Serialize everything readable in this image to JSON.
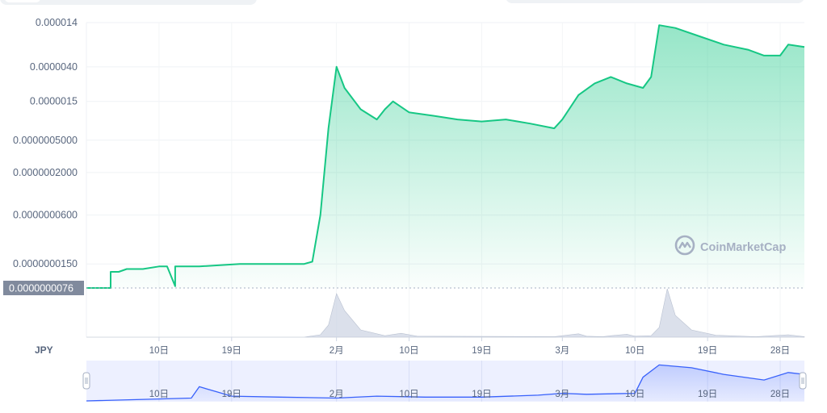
{
  "chart_data": {
    "type": "area",
    "currency": "JPY",
    "watermark": "CoinMarketCap",
    "y_scale": "log",
    "y_ticks": [
      "0.000014",
      "0.0000040",
      "0.0000015",
      "0.0000005000",
      "0.0000002000",
      "0.0000000600",
      "0.0000000150"
    ],
    "y_tick_values": [
      1.4e-05,
      4e-06,
      1.5e-06,
      5e-07,
      2e-07,
      6e-08,
      1.5e-08
    ],
    "current_price_label": "0.0000000076",
    "current_price_value": 7.6e-09,
    "x_ticks": [
      "10日",
      "19日",
      "2月",
      "10日",
      "19日",
      "3月",
      "10日",
      "19日",
      "28日"
    ],
    "x_tick_dates": [
      "2021-01-10",
      "2021-01-19",
      "2021-02-01",
      "2021-02-10",
      "2021-02-19",
      "2021-03-01",
      "2021-03-10",
      "2021-03-19",
      "2021-03-28"
    ],
    "x_range": [
      "2021-01-01",
      "2021-03-31"
    ],
    "line_color": "#16c784",
    "navigator_color": "#3861fb",
    "series": [
      {
        "x": [
          "2021-01-01",
          "2021-01-04",
          "2021-01-04",
          "2021-01-05",
          "2021-01-06",
          "2021-01-08",
          "2021-01-10",
          "2021-01-11",
          "2021-01-12",
          "2021-01-12",
          "2021-01-15",
          "2021-01-20",
          "2021-01-25",
          "2021-01-28",
          "2021-01-29",
          "2021-01-30",
          "2021-01-31",
          "2021-02-01",
          "2021-02-02",
          "2021-02-04",
          "2021-02-06",
          "2021-02-07",
          "2021-02-08",
          "2021-02-10",
          "2021-02-13",
          "2021-02-16",
          "2021-02-19",
          "2021-02-22",
          "2021-02-25",
          "2021-02-28",
          "2021-03-01",
          "2021-03-03",
          "2021-03-05",
          "2021-03-07",
          "2021-03-09",
          "2021-03-11",
          "2021-03-12",
          "2021-03-13",
          "2021-03-15",
          "2021-03-18",
          "2021-03-21",
          "2021-03-24",
          "2021-03-26",
          "2021-03-28",
          "2021-03-29",
          "2021-03-31"
        ],
        "values": [
          7.6e-09,
          7.6e-09,
          1.2e-08,
          1.2e-08,
          1.3e-08,
          1.3e-08,
          1.4e-08,
          1.4e-08,
          8e-09,
          1.4e-08,
          1.4e-08,
          1.5e-08,
          1.5e-08,
          1.5e-08,
          1.6e-08,
          6e-08,
          7e-07,
          4e-06,
          2.2e-06,
          1.2e-06,
          9e-07,
          1.2e-06,
          1.5e-06,
          1.1e-06,
          1e-06,
          9e-07,
          8.5e-07,
          9e-07,
          8e-07,
          7e-07,
          9e-07,
          1.8e-06,
          2.5e-06,
          3e-06,
          2.5e-06,
          2.2e-06,
          3e-06,
          1.3e-05,
          1.2e-05,
          9.5e-06,
          7.5e-06,
          6.5e-06,
          5.5e-06,
          5.5e-06,
          7.5e-06,
          7e-06
        ]
      }
    ],
    "volume": {
      "x": [
        "2021-01-01",
        "2021-01-28",
        "2021-01-30",
        "2021-01-31",
        "2021-02-01",
        "2021-02-02",
        "2021-02-04",
        "2021-02-07",
        "2021-02-09",
        "2021-02-11",
        "2021-02-28",
        "2021-03-01",
        "2021-03-03",
        "2021-03-04",
        "2021-03-06",
        "2021-03-07",
        "2021-03-09",
        "2021-03-10",
        "2021-03-12",
        "2021-03-13",
        "2021-03-14",
        "2021-03-15",
        "2021-03-17",
        "2021-03-20",
        "2021-03-25",
        "2021-03-27",
        "2021-03-29",
        "2021-03-31"
      ],
      "values": [
        0,
        0,
        5,
        25,
        90,
        55,
        15,
        3,
        8,
        2,
        1,
        3,
        7,
        2,
        1,
        3,
        6,
        2,
        3,
        20,
        100,
        45,
        15,
        4,
        1,
        3,
        5,
        1
      ]
    },
    "navigator": {
      "x_ticks": [
        "10日",
        "19日",
        "2月",
        "10日",
        "19日",
        "3月",
        "10日",
        "19日",
        "28日"
      ],
      "x_tick_dates": [
        "2021-01-10",
        "2021-01-19",
        "2021-02-01",
        "2021-02-10",
        "2021-02-19",
        "2021-03-01",
        "2021-03-10",
        "2021-03-19",
        "2021-03-28"
      ],
      "x": [
        "2021-01-01",
        "2021-01-10",
        "2021-01-14",
        "2021-01-15",
        "2021-01-17",
        "2021-01-19",
        "2021-01-25",
        "2021-02-01",
        "2021-02-06",
        "2021-02-12",
        "2021-02-19",
        "2021-02-26",
        "2021-03-01",
        "2021-03-04",
        "2021-03-10",
        "2021-03-11",
        "2021-03-13",
        "2021-03-17",
        "2021-03-21",
        "2021-03-26",
        "2021-03-29",
        "2021-03-31"
      ],
      "values": [
        0,
        2,
        3,
        15,
        10,
        5,
        4,
        3,
        5,
        4,
        4,
        6,
        8,
        7,
        8,
        25,
        38,
        35,
        28,
        22,
        30,
        28
      ],
      "max": 40
    }
  }
}
